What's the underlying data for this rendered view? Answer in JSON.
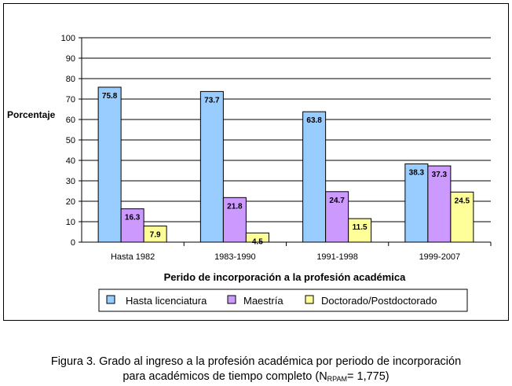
{
  "chart_data": {
    "type": "bar",
    "ylabel": "Porcentaje",
    "xlabel": "Perido de incorporación a la profesión académica",
    "ylim": [
      0,
      100
    ],
    "yticks": [
      0,
      10,
      20,
      30,
      40,
      50,
      60,
      70,
      80,
      90,
      100
    ],
    "grid": "horizontal",
    "legend_position": "bottom",
    "categories": [
      "Hasta 1982",
      "1983-1990",
      "1991-1998",
      "1999-2007"
    ],
    "value_labels": [
      [
        "75.8",
        "73.7",
        "63.8",
        "38.3"
      ],
      [
        "16.3",
        "21.8",
        "24.7",
        "37.3"
      ],
      [
        "7.9",
        "4.5",
        "11.5",
        "24.5"
      ]
    ],
    "series": [
      {
        "name": "Hasta licenciatura",
        "values": [
          75.8,
          73.7,
          63.8,
          38.3
        ],
        "color": "#99ccff"
      },
      {
        "name": "Maestría",
        "values": [
          16.3,
          21.8,
          24.7,
          37.3
        ],
        "color": "#cc99ff"
      },
      {
        "name": "Doctorado/Postdoctorado",
        "values": [
          7.9,
          4.5,
          11.5,
          24.5
        ],
        "color": "#ffff99"
      }
    ]
  },
  "caption": {
    "line1": "Figura 3. Grado al ingreso a la profesión académica por periodo de incorporación",
    "line2_prefix": "para académicos de tiempo completo (N",
    "line2_sub": "RPAM",
    "line2_suffix": "= 1,775)"
  }
}
